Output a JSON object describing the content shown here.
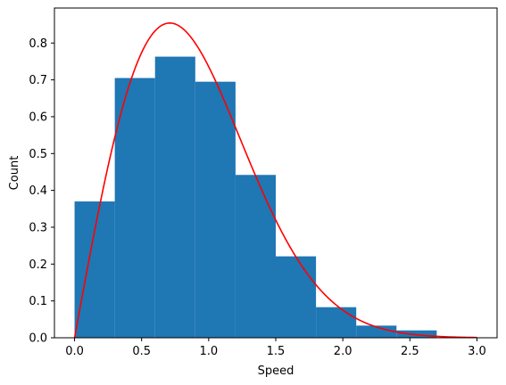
{
  "chart_data": {
    "type": "bar",
    "title": "",
    "xlabel": "Speed",
    "ylabel": "Count",
    "xlim": [
      -0.15,
      3.15
    ],
    "ylim": [
      0.0,
      0.895
    ],
    "xticks": [
      0.0,
      0.5,
      1.0,
      1.5,
      2.0,
      2.5,
      3.0
    ],
    "xtick_labels": [
      "0.0",
      "0.5",
      "1.0",
      "1.5",
      "2.0",
      "2.5",
      "3.0"
    ],
    "yticks": [
      0.0,
      0.1,
      0.2,
      0.3,
      0.4,
      0.5,
      0.6,
      0.7,
      0.8
    ],
    "ytick_labels": [
      "0.0",
      "0.1",
      "0.2",
      "0.3",
      "0.4",
      "0.5",
      "0.6",
      "0.7",
      "0.8"
    ],
    "grid": false,
    "histogram": {
      "color": "#1f77b4",
      "bins": [
        {
          "x0": 0.0,
          "x1": 0.3,
          "value": 0.37
        },
        {
          "x0": 0.3,
          "x1": 0.6,
          "value": 0.705
        },
        {
          "x0": 0.6,
          "x1": 0.9,
          "value": 0.763
        },
        {
          "x0": 0.9,
          "x1": 1.2,
          "value": 0.695
        },
        {
          "x0": 1.2,
          "x1": 1.5,
          "value": 0.442
        },
        {
          "x0": 1.5,
          "x1": 1.8,
          "value": 0.221
        },
        {
          "x0": 1.8,
          "x1": 2.1,
          "value": 0.083
        },
        {
          "x0": 2.1,
          "x1": 2.4,
          "value": 0.033
        },
        {
          "x0": 2.4,
          "x1": 2.7,
          "value": 0.02
        }
      ]
    },
    "curve": {
      "type": "line",
      "color": "#ff0000",
      "function": "maxwell_boltzmann_2d",
      "peak_x": 0.71,
      "peak_y": 0.85,
      "x_range": [
        0.0,
        3.0
      ]
    }
  }
}
